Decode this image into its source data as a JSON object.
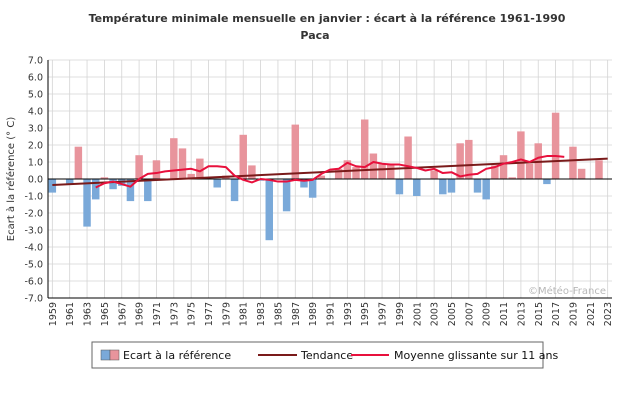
{
  "chart_data": {
    "type": "bar",
    "title": "Température minimale mensuelle en janvier : écart à la référence 1961-1990",
    "subtitle": "Paca",
    "xlabel": "",
    "ylabel": "Ecart à la référence (° C)",
    "ylim": [
      -7.0,
      7.0
    ],
    "y_ticks": [
      "7.0",
      "6.0",
      "5.0",
      "4.0",
      "3.0",
      "2.0",
      "1.0",
      "0.0",
      "-1.0",
      "-2.0",
      "-3.0",
      "-4.0",
      "-5.0",
      "-6.0",
      "-7.0"
    ],
    "x_range": [
      1959,
      2023
    ],
    "x_ticks": [
      "1959",
      "1961",
      "1963",
      "1965",
      "1967",
      "1969",
      "1971",
      "1973",
      "1975",
      "1977",
      "1979",
      "1981",
      "1983",
      "1985",
      "1987",
      "1989",
      "1991",
      "1993",
      "1995",
      "1997",
      "1999",
      "2001",
      "2003",
      "2005",
      "2007",
      "2009",
      "2011",
      "2013",
      "2015",
      "2017",
      "2019",
      "2021",
      "2023"
    ],
    "grid": true,
    "legend_position": "bottom",
    "watermark": "©Météo-France",
    "colors": {
      "positive": "#e8949c",
      "negative": "#7aa9d9",
      "trend": "#7a1a1a",
      "rolling_mean": "#e8103c",
      "grid": "#d4d4d4"
    },
    "series": [
      {
        "name": "Ecart à la référence",
        "kind": "bar",
        "x": [
          1959,
          1960,
          1961,
          1962,
          1963,
          1964,
          1965,
          1966,
          1967,
          1968,
          1969,
          1970,
          1971,
          1972,
          1973,
          1974,
          1975,
          1976,
          1977,
          1978,
          1979,
          1980,
          1981,
          1982,
          1983,
          1984,
          1985,
          1986,
          1987,
          1988,
          1989,
          1990,
          1991,
          1992,
          1993,
          1994,
          1995,
          1996,
          1997,
          1998,
          1999,
          2000,
          2001,
          2002,
          2003,
          2004,
          2005,
          2006,
          2007,
          2008,
          2009,
          2010,
          2011,
          2012,
          2013,
          2014,
          2015,
          2016,
          2017,
          2018,
          2019,
          2020,
          2021,
          2022,
          2023
        ],
        "values": [
          -0.8,
          0.0,
          -0.3,
          1.9,
          -2.8,
          -1.2,
          0.1,
          -0.6,
          -0.4,
          -1.3,
          1.4,
          -1.3,
          1.1,
          0.0,
          2.4,
          1.8,
          0.3,
          1.2,
          0.0,
          -0.5,
          0.2,
          -1.3,
          2.6,
          0.8,
          -0.1,
          -3.6,
          0.0,
          -1.9,
          3.2,
          -0.5,
          -1.1,
          0.2,
          0.0,
          0.6,
          1.1,
          0.7,
          3.5,
          1.5,
          0.9,
          0.9,
          -0.9,
          2.5,
          -1.0,
          0.0,
          0.5,
          -0.9,
          -0.8,
          2.1,
          2.3,
          -0.8,
          -1.2,
          0.8,
          1.4,
          0.1,
          2.8,
          0.9,
          2.1,
          -0.3,
          3.9,
          0.0,
          1.9,
          0.6,
          0.0,
          1.1,
          0.0
        ]
      },
      {
        "name": "Tendance",
        "kind": "line",
        "x": [
          1959,
          2023
        ],
        "values": [
          -0.35,
          1.2
        ]
      },
      {
        "name": "Moyenne glissante sur 11 ans",
        "kind": "line",
        "x": [
          1964,
          1965,
          1966,
          1967,
          1968,
          1969,
          1970,
          1971,
          1972,
          1973,
          1974,
          1975,
          1976,
          1977,
          1978,
          1979,
          1980,
          1981,
          1982,
          1983,
          1984,
          1985,
          1986,
          1987,
          1988,
          1989,
          1990,
          1991,
          1992,
          1993,
          1994,
          1995,
          1996,
          1997,
          1998,
          1999,
          2000,
          2001,
          2002,
          2003,
          2004,
          2005,
          2006,
          2007,
          2008,
          2009,
          2010,
          2011,
          2012,
          2013,
          2014,
          2015,
          2016,
          2017,
          2018
        ],
        "values": [
          -0.5,
          -0.25,
          -0.15,
          -0.3,
          -0.45,
          0.0,
          0.3,
          0.35,
          0.45,
          0.5,
          0.55,
          0.6,
          0.45,
          0.75,
          0.75,
          0.7,
          0.2,
          -0.05,
          -0.2,
          0.0,
          -0.05,
          -0.15,
          -0.15,
          -0.05,
          -0.1,
          -0.05,
          0.3,
          0.55,
          0.6,
          0.95,
          0.75,
          0.7,
          1.0,
          0.9,
          0.85,
          0.85,
          0.75,
          0.65,
          0.5,
          0.6,
          0.35,
          0.4,
          0.15,
          0.25,
          0.3,
          0.6,
          0.7,
          0.9,
          1.0,
          1.15,
          1.0,
          1.25,
          1.35,
          1.35,
          1.3
        ]
      }
    ]
  }
}
